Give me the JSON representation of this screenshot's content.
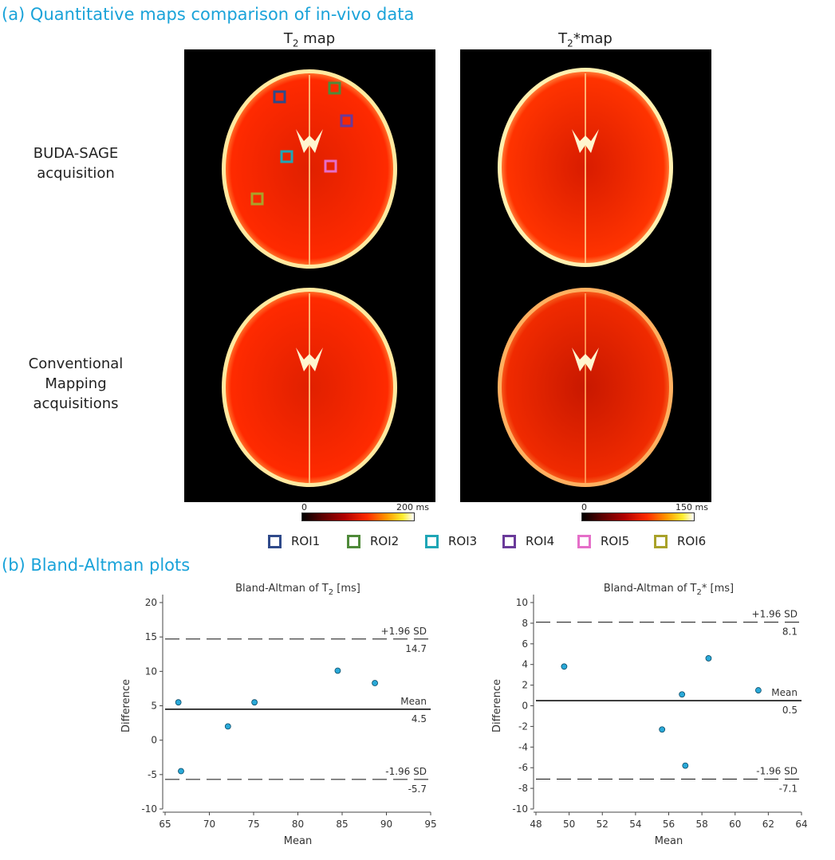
{
  "section_a_title": "(a) Quantitative maps comparison of in-vivo data",
  "section_b_title": "(b) Bland-Altman plots",
  "columns": [
    {
      "title": "T",
      "sub": "2",
      "suffix": " map"
    },
    {
      "title": "T",
      "sub": "2",
      "suffix": "*map"
    }
  ],
  "rows": [
    {
      "label": "BUDA-SAGE\nacquisition"
    },
    {
      "label": "Conventional\nMapping\nacquisitions"
    }
  ],
  "colorbars": [
    {
      "min_label": "0",
      "max_label": "200 ms"
    },
    {
      "min_label": "0",
      "max_label": "150 ms"
    }
  ],
  "rois": [
    {
      "label": "ROI1",
      "color": "#2f4a8a"
    },
    {
      "label": "ROI2",
      "color": "#4f8a3a"
    },
    {
      "label": "ROI3",
      "color": "#1fa6b6"
    },
    {
      "label": "ROI4",
      "color": "#6a3a9a"
    },
    {
      "label": "ROI5",
      "color": "#e56fc9"
    },
    {
      "label": "ROI6",
      "color": "#a9a22a"
    }
  ],
  "chart_data": [
    {
      "type": "scatter",
      "title": "Bland-Altman of T",
      "title_sub": "2",
      "title_suffix": " [ms]",
      "xlabel": "Mean",
      "ylabel": "Difference",
      "xlim": [
        65,
        95
      ],
      "ylim": [
        -10,
        20
      ],
      "xticks": [
        65,
        70,
        75,
        80,
        85,
        90,
        95
      ],
      "yticks": [
        -10,
        -5,
        0,
        5,
        10,
        15,
        20
      ],
      "points": [
        {
          "x": 66.5,
          "y": 5.5
        },
        {
          "x": 66.8,
          "y": -4.5
        },
        {
          "x": 72.1,
          "y": 2.0
        },
        {
          "x": 75.1,
          "y": 5.5
        },
        {
          "x": 84.5,
          "y": 10.1
        },
        {
          "x": 88.7,
          "y": 8.3
        }
      ],
      "mean": 4.5,
      "upper": 14.7,
      "lower": -5.7,
      "mean_text": "Mean",
      "mean_value": "4.5",
      "upper_text": "+1.96 SD",
      "upper_value": "14.7",
      "lower_text": "-1.96 SD",
      "lower_value": "-5.7"
    },
    {
      "type": "scatter",
      "title": "Bland-Altman of T",
      "title_sub": "2",
      "title_suffix": "* [ms]",
      "xlabel": "Mean",
      "ylabel": "Difference",
      "xlim": [
        48,
        64
      ],
      "ylim": [
        -10,
        10
      ],
      "xticks": [
        48,
        50,
        52,
        54,
        56,
        58,
        60,
        62,
        64
      ],
      "yticks": [
        -10,
        -8,
        -6,
        -4,
        -2,
        0,
        2,
        4,
        6,
        8,
        10
      ],
      "points": [
        {
          "x": 49.7,
          "y": 3.8
        },
        {
          "x": 55.6,
          "y": -2.3
        },
        {
          "x": 56.8,
          "y": 1.1
        },
        {
          "x": 57.0,
          "y": -5.8
        },
        {
          "x": 58.4,
          "y": 4.6
        },
        {
          "x": 61.4,
          "y": 1.5
        }
      ],
      "mean": 0.5,
      "upper": 8.1,
      "lower": -7.1,
      "mean_text": "Mean",
      "mean_value": "0.5",
      "upper_text": "+1.96 SD",
      "upper_value": "8.1",
      "lower_text": "-1.96 SD",
      "lower_value": "-7.1"
    }
  ]
}
